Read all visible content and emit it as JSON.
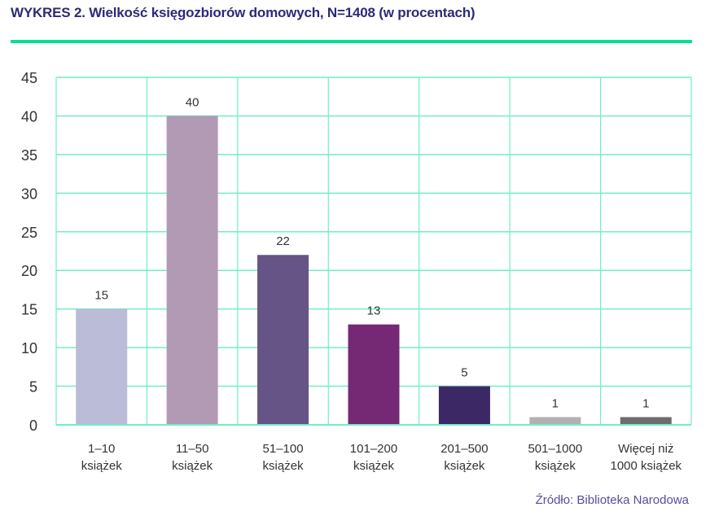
{
  "title": "WYKRES 2. Wielkość księgozbiorów domowych, N=1408 (w procentach)",
  "source": "Źródło: Biblioteka Narodowa",
  "colors": {
    "grid": "#6ef0c4",
    "rule": "#00e096",
    "title": "#2c2a78"
  },
  "chart_data": {
    "type": "bar",
    "title": "WYKRES 2. Wielkość księgozbiorów domowych, N=1408 (w procentach)",
    "categories": [
      [
        "1–10",
        "książek"
      ],
      [
        "11–50",
        "książek"
      ],
      [
        "51–100",
        "książek"
      ],
      [
        "101–200",
        "książek"
      ],
      [
        "201–500",
        "książek"
      ],
      [
        "501–1000",
        "książek"
      ],
      [
        "Więcej niż",
        "1000 książek"
      ]
    ],
    "values": [
      15,
      40,
      22,
      13,
      5,
      1,
      1
    ],
    "data_labels": [
      "15",
      "40",
      "22",
      "13",
      "5",
      "1",
      "1"
    ],
    "bar_colors": [
      "#bbbcd8",
      "#b29ab5",
      "#655485",
      "#752874",
      "#3c2864",
      "#b1b1b3",
      "#6c6c6e"
    ],
    "ylim": [
      0,
      45
    ],
    "yticks": [
      0,
      5,
      10,
      15,
      20,
      25,
      30,
      35,
      40,
      45
    ],
    "grid": true,
    "legend": "none",
    "xlabel": "",
    "ylabel": ""
  }
}
